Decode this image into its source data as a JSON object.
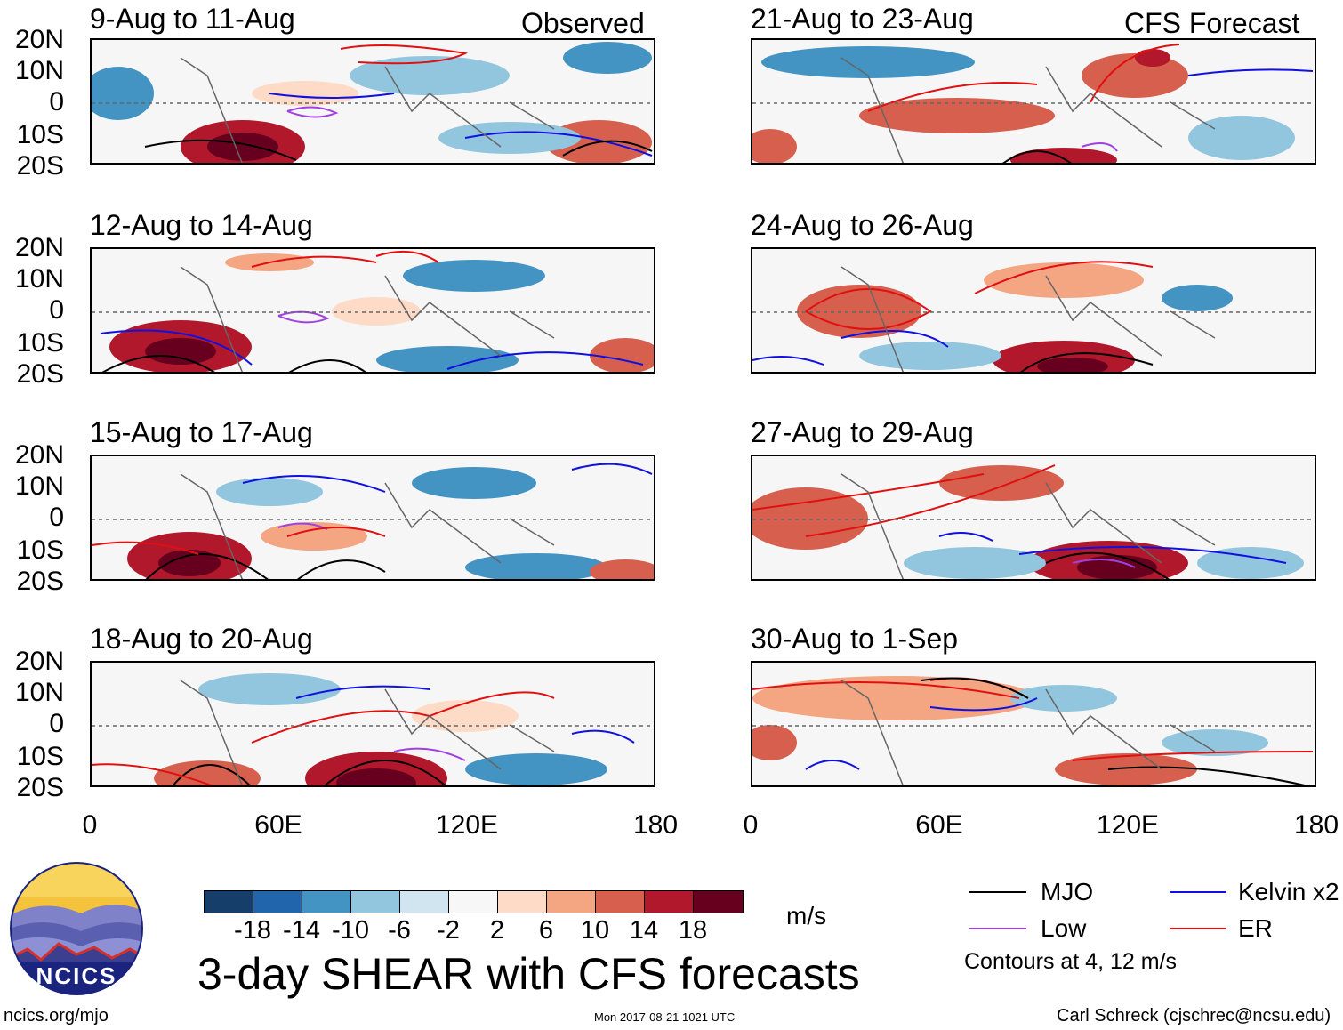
{
  "panels_left": [
    {
      "period": "9-Aug to 11-Aug",
      "tag": "Observed"
    },
    {
      "period": "12-Aug to 14-Aug"
    },
    {
      "period": "15-Aug to 17-Aug"
    },
    {
      "period": "18-Aug to 20-Aug"
    }
  ],
  "panels_right": [
    {
      "period": "21-Aug to 23-Aug",
      "tag": "CFS Forecast"
    },
    {
      "period": "24-Aug to 26-Aug"
    },
    {
      "period": "27-Aug to 29-Aug"
    },
    {
      "period": "30-Aug to 1-Sep"
    }
  ],
  "lat_labels": [
    "20N",
    "10N",
    "0",
    "10S",
    "20S"
  ],
  "lon_labels": [
    "0",
    "60E",
    "120E",
    "180"
  ],
  "colorbar": {
    "colors": [
      "#153e6b",
      "#2166ac",
      "#4393c3",
      "#92c5de",
      "#d1e5f0",
      "#f7f7f7",
      "#fddbc7",
      "#f4a582",
      "#d6604d",
      "#b2182b",
      "#67001f"
    ],
    "ticks": [
      "-18",
      "-14",
      "-10",
      "-6",
      "-2",
      "2",
      "6",
      "10",
      "14",
      "18"
    ],
    "units": "m/s"
  },
  "title": "3-day SHEAR with CFS forecasts",
  "legend": {
    "items": [
      {
        "label": "MJO",
        "color": "#000000"
      },
      {
        "label": "Kelvin x2",
        "color": "#1010e0"
      },
      {
        "label": "Low",
        "color": "#a040e0"
      },
      {
        "label": "ER",
        "color": "#e01010"
      }
    ],
    "note": "Contours at 4, 12 m/s"
  },
  "logo_text": "NCICS",
  "footer": {
    "left": "ncics.org/mjo",
    "center": "Mon 2017-08-21 1021 UTC",
    "right": "Carl Schreck (cjschrec@ncsu.edu)"
  }
}
